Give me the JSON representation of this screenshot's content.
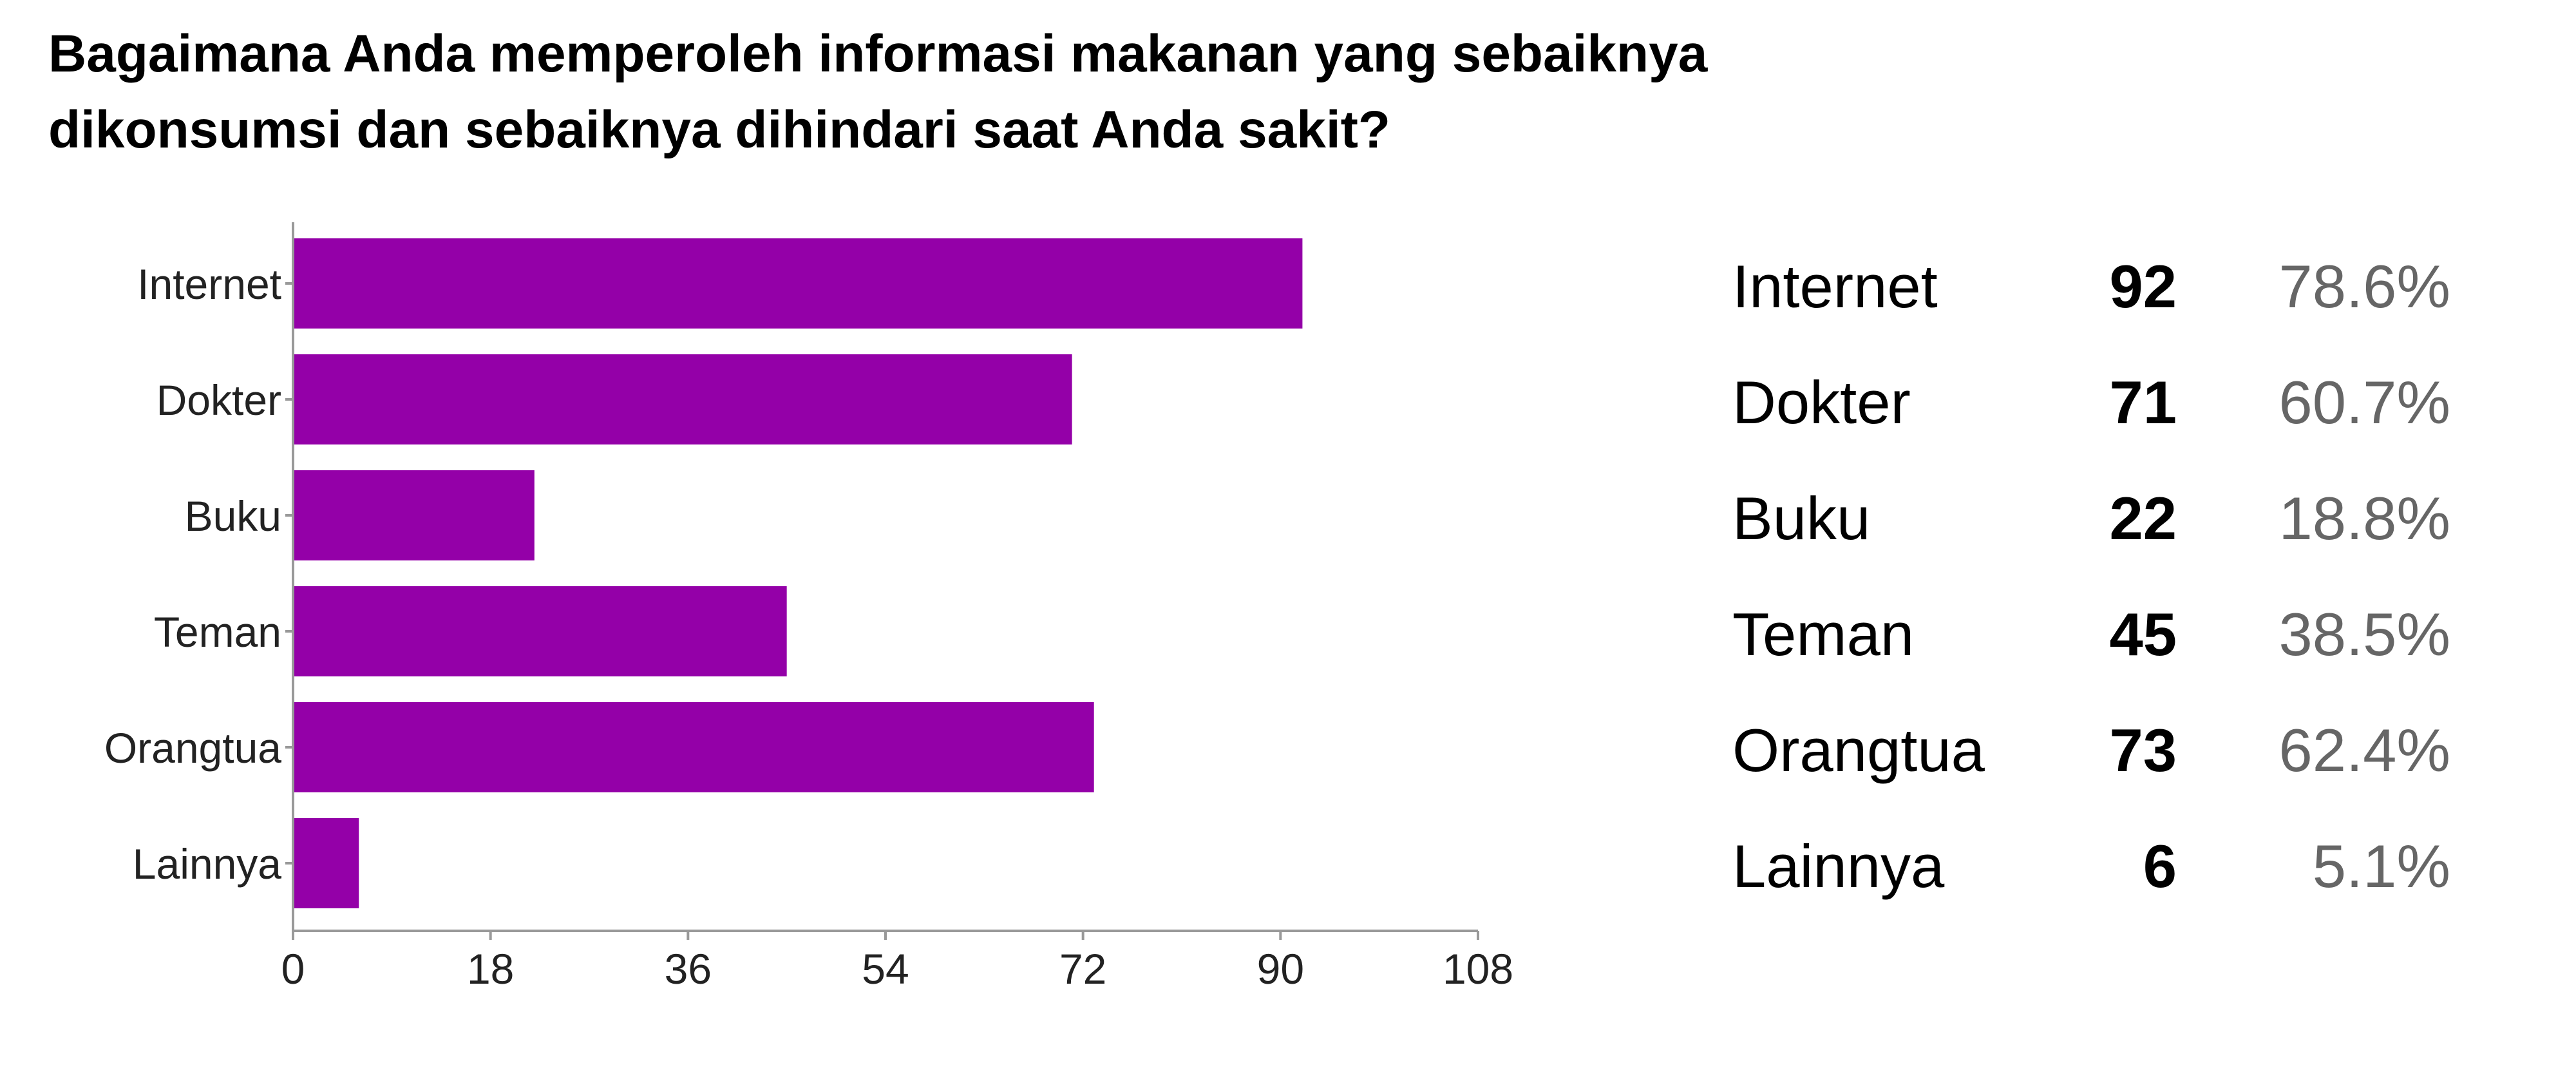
{
  "title_lines": [
    "Bagaimana Anda memperoleh informasi makanan yang sebaiknya",
    "dikonsumsi dan sebaiknya dihindari saat Anda sakit?"
  ],
  "colors": {
    "bar": "#9400A8",
    "axis": "#999999",
    "percent_text": "#666666"
  },
  "chart_data": {
    "type": "bar",
    "orientation": "horizontal",
    "title": "Bagaimana Anda memperoleh informasi makanan yang sebaiknya dikonsumsi dan sebaiknya dihindari saat Anda sakit?",
    "categories": [
      "Internet",
      "Dokter",
      "Buku",
      "Teman",
      "Orangtua",
      "Lainnya"
    ],
    "values": [
      92,
      71,
      22,
      45,
      73,
      6
    ],
    "x_ticks": [
      "0",
      "18",
      "36",
      "54",
      "72",
      "90",
      "108"
    ],
    "xlim": [
      0,
      108
    ],
    "grid": false,
    "legend": "none"
  },
  "summary": [
    {
      "label": "Internet",
      "count": "92",
      "percent": "78.6%"
    },
    {
      "label": "Dokter",
      "count": "71",
      "percent": "60.7%"
    },
    {
      "label": "Buku",
      "count": "22",
      "percent": "18.8%"
    },
    {
      "label": "Teman",
      "count": "45",
      "percent": "38.5%"
    },
    {
      "label": "Orangtua",
      "count": "73",
      "percent": "62.4%"
    },
    {
      "label": "Lainnya",
      "count": "6",
      "percent": "5.1%"
    }
  ]
}
